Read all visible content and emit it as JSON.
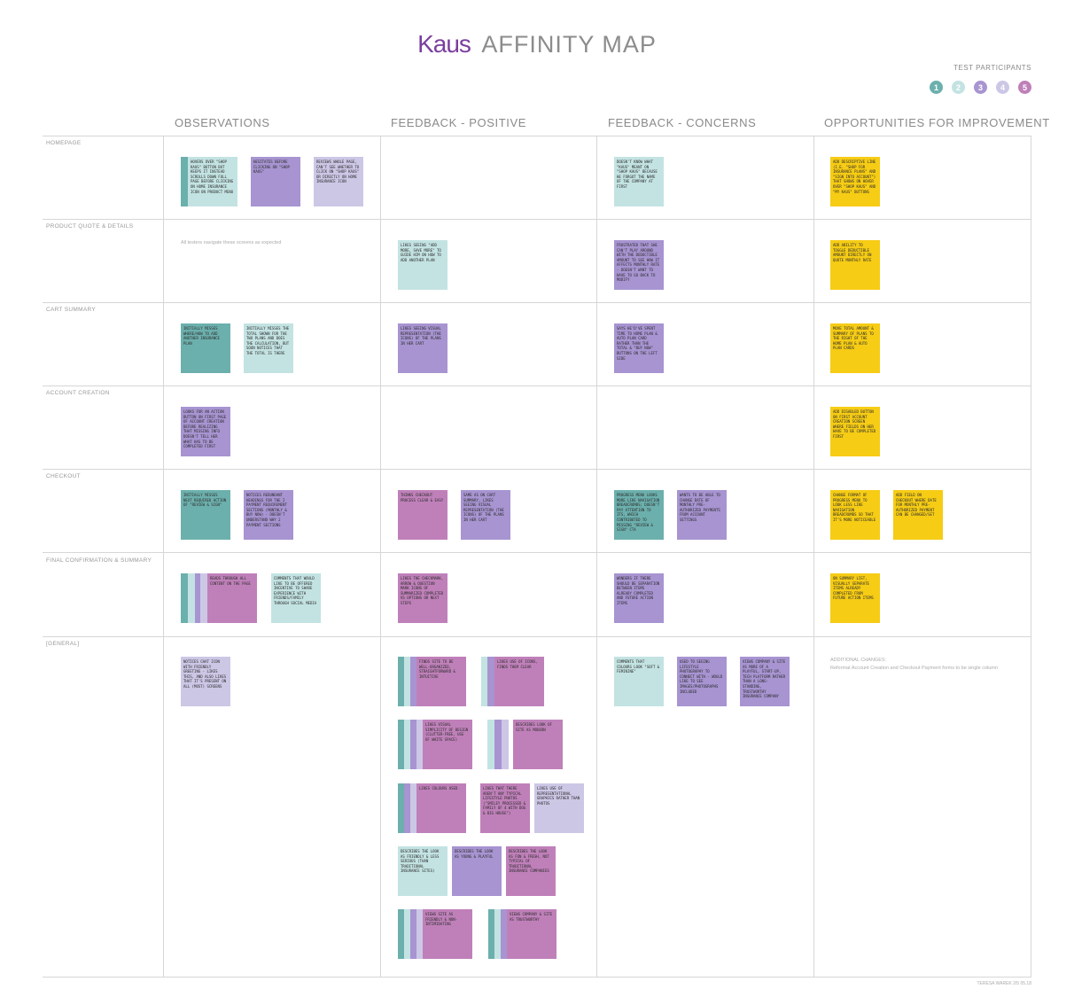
{
  "header": {
    "logo_text": "Kaus",
    "title": "AFFINITY MAP"
  },
  "participants": {
    "label": "TEST PARTICIPANTS",
    "ids": [
      "1",
      "2",
      "3",
      "4",
      "5"
    ],
    "colors": [
      "#6cb0ad",
      "#c3e3e2",
      "#a794d1",
      "#cdc7e6",
      "#bf80b9"
    ]
  },
  "columns": [
    "OBSERVATIONS",
    "FEEDBACK - POSITIVE",
    "FEEDBACK - CONCERNS",
    "OPPORTUNITIES FOR IMPROVEMENT"
  ],
  "rows": [
    "HOMEPAGE",
    "PRODUCT QUOTE & DETAILS",
    "CART SUMMARY",
    "ACCOUNT CREATION",
    "CHECKOUT",
    "FINAL CONFIRMATION & SUMMARY",
    "[GENERAL]"
  ],
  "notes": {
    "home_obs_1": "Hovers over \"shop Kaus\" button but keeps it instead scrolls down full page before clicking on home insurance icon on product menu",
    "home_obs_2": "Hesitates before clicking on \"shop Kaus\"",
    "home_obs_3": "Reviews whole page, can't see whether to click on \"shop Kaus\" or directly on home insurance icon",
    "home_con_1": "Doesn't know what \"Kaus\" meant on \"shop Kaus\" because he forgot the name of the company at first",
    "home_opp_1": "Add descriptive line (i.e. \"shop for insurance plans\" and \"sign into account\") that shows on hover over \"shop Kaus\" and \"my Kaus\" buttons",
    "quote_obs_text": "All testers navigate these screens as expected",
    "quote_pos_1": "Likes seeing \"add more, save more\" to guide him on how to add another plan",
    "quote_con_1": "Frustrated that she can't play around with the deductible amount to see how it affects monthly rate - doesn't want to have to go back to modify",
    "quote_opp_1": "Add ability to toggle deductible amount directly on quote monthly rate",
    "cart_obs_1": "Initially misses where/how to add another insurance plan",
    "cart_obs_2": "Initially misses the total shown for the two plans and does the calculation, but soon notices that the total is there",
    "cart_pos_1": "Likes seeing visual representation (the icons) of the plans in her cart",
    "cart_con_1": "Says he'd've spent time to home plan & auto plan card rather than the total & \"buy now\" buttons on the left side",
    "cart_opp_1": "Move total amount & summary of plans to the right of the home plan & auto plan cards",
    "acct_obs_1": "Looks for an action button on first page of account creation before realizing that missing info doesn't tell her what has to be completed first",
    "acct_opp_1": "Add disabled button on first account creation screen where fields on her have to be completed first",
    "chk_obs_1": "Initially misses next required action of \"review & sign\"",
    "chk_obs_2": "Notices redundant headings for the 2 payment requirement sections (monthly & buy now) - doesn't understand why 2 payment sections",
    "chk_pos_1": "Thinks checkout process clear & easy",
    "chk_pos_2": "Same as on cart summary, likes seeing visual representation (the icons) of the plans in her cart",
    "chk_con_1": "Progress menu looks more like navigation breadcrumbs; doesn't pay attention to its, which contributed to missing \"review & sign\" CTA",
    "chk_con_2": "Wants to be able to change date of monthly pre-authorized payments from account settings",
    "chk_opp_1": "Change format of progress menu to look less like navigation breadcrumbs so that it's more noticeable",
    "chk_opp_2": "Add field on checkout where date for monthly pre-authorized payment can be changed/set",
    "fin_obs_1": "Reads through all content on the page",
    "fin_obs_2": "Comments that would like to be offered incentive to share experience with friends/family through social media",
    "fin_pos_1": "Likes the checkmark, arrow & question mark icons of summarized completed vs options or next steps",
    "fin_con_1": "Wonders if there should be separation between items already completed and future action items",
    "fin_opp_1": "On summary list, visually separate items already completed from future action items",
    "gen_obs_1": "Notices chat icon with friendly greeting - likes this, and also likes that it's present on all (most) screens",
    "gen_pos_1": "Finds site to be well-organized, straightforward & intuitive",
    "gen_pos_2": "Likes use of icons, finds them clear",
    "gen_pos_3": "Likes visual simplicity of design (clutter-free, use of white space)",
    "gen_pos_4": "Describes look of site as modern",
    "gen_pos_5": "Likes colours used",
    "gen_pos_6": "Likes that there aren't any typical lifestyle photos (\"smiley processed & family of 4 with dog & big house\")",
    "gen_pos_7": "Likes use of representational graphics rather than photos",
    "gen_pos_8": "Describes the look as friendly & less serious (than traditional insurance sites)",
    "gen_pos_9": "Describes the look as young & playful",
    "gen_pos_10": "Describes the look as fun & fresh, not typical of traditional insurance companies",
    "gen_pos_11": "Views site as friendly & non-intimidating",
    "gen_pos_12": "Views company & site as trustworthy",
    "gen_con_1": "Comments that colours look \"soft & feminine\"",
    "gen_con_2": "Used to seeing lifestyle photography to connect with - would like to see images/photographs included",
    "gen_con_3": "Views company & site as more of a playful, start-up, tech platform rather than a long-standing, trustworthy insurance company",
    "gen_opp_label": "ADDITIONAL CHANGES:",
    "gen_opp_text": "Reformat Account Creation and Checkout Payment forms to be single column"
  },
  "footer": "TERESA WAREK 2/5 05.18"
}
